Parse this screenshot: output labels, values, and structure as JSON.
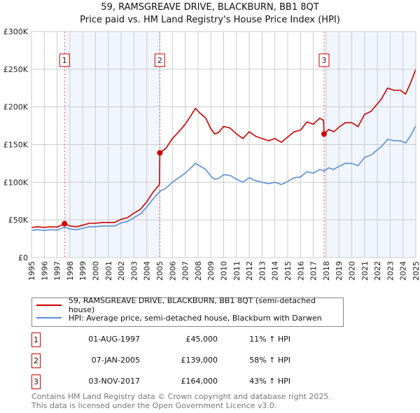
{
  "chart_data": {
    "type": "line",
    "title": "59, RAMSGREAVE DRIVE, BLACKBURN, BB1 8QT",
    "subtitle": "Price paid vs. HM Land Registry's House Price Index (HPI)",
    "xlim": [
      1995,
      2025
    ],
    "ylim": [
      0,
      300000
    ],
    "x_ticks": [
      "1995",
      "1996",
      "1997",
      "1998",
      "1999",
      "2000",
      "2001",
      "2002",
      "2003",
      "2004",
      "2005",
      "2006",
      "2007",
      "2008",
      "2009",
      "2010",
      "2011",
      "2012",
      "2013",
      "2014",
      "2015",
      "2016",
      "2017",
      "2018",
      "2019",
      "2020",
      "2021",
      "2022",
      "2023",
      "2024",
      "2025"
    ],
    "y_ticks": [
      {
        "v": 0,
        "label": "£0"
      },
      {
        "v": 50000,
        "label": "£50K"
      },
      {
        "v": 100000,
        "label": "£100K"
      },
      {
        "v": 150000,
        "label": "£150K"
      },
      {
        "v": 200000,
        "label": "£200K"
      },
      {
        "v": 250000,
        "label": "£250K"
      },
      {
        "v": 300000,
        "label": "£300K"
      }
    ],
    "grid": true,
    "legend_placement": "below",
    "series": [
      {
        "name": "59, RAMSGREAVE DRIVE, BLACKBURN, BB1 8QT (semi-detached house)",
        "color": "#cc0000",
        "x": [
          1995,
          1995.5,
          1996,
          1996.5,
          1997,
          1997.58,
          1998,
          1998.5,
          1999,
          1999.5,
          2000,
          2000.5,
          2001,
          2001.5,
          2002,
          2002.5,
          2003,
          2003.5,
          2004,
          2004.5,
          2004.99,
          2005.02,
          2005.5,
          2006,
          2006.5,
          2007,
          2007.5,
          2007.8,
          2008.2,
          2008.6,
          2009,
          2009.3,
          2009.6,
          2010,
          2010.5,
          2011,
          2011.5,
          2012,
          2012.5,
          2013,
          2013.5,
          2014,
          2014.5,
          2015,
          2015.5,
          2016,
          2016.5,
          2017,
          2017.5,
          2017.8,
          2017.84,
          2018.2,
          2018.6,
          2019,
          2019.5,
          2020,
          2020.5,
          2021,
          2021.5,
          2022,
          2022.3,
          2022.8,
          2023.3,
          2023.8,
          2024.2,
          2024.6,
          2025
        ],
        "y": [
          40000,
          41000,
          40000,
          41000,
          40500,
          45000,
          42000,
          41000,
          43000,
          45500,
          45500,
          46600,
          46600,
          46600,
          51000,
          53000,
          59000,
          64000,
          74000,
          87000,
          97000,
          139000,
          145000,
          158000,
          167000,
          177000,
          190000,
          198000,
          191000,
          185000,
          171000,
          164000,
          166000,
          174000,
          172000,
          164000,
          158000,
          167000,
          161000,
          158000,
          155000,
          158000,
          153000,
          160000,
          167000,
          169000,
          180000,
          177000,
          185000,
          182000,
          164000,
          170000,
          167000,
          173000,
          179000,
          179000,
          174000,
          190000,
          194000,
          204000,
          210000,
          225000,
          222000,
          222000,
          217000,
          232000,
          250000
        ]
      },
      {
        "name": "HPI: Average price, semi-detached house, Blackburn with Darwen",
        "color": "#5b8fd4",
        "x": [
          1995,
          1995.5,
          1996,
          1996.5,
          1997,
          1997.58,
          1998,
          1998.5,
          1999,
          1999.5,
          2000,
          2000.5,
          2001,
          2001.5,
          2002,
          2002.5,
          2003,
          2003.5,
          2004,
          2004.5,
          2005.02,
          2005.5,
          2006,
          2006.5,
          2007,
          2007.5,
          2007.8,
          2008.2,
          2008.6,
          2009,
          2009.3,
          2009.6,
          2010,
          2010.5,
          2011,
          2011.5,
          2012,
          2012.5,
          2013,
          2013.5,
          2014,
          2014.5,
          2015,
          2015.5,
          2016,
          2016.5,
          2017,
          2017.5,
          2017.84,
          2018.2,
          2018.6,
          2019,
          2019.5,
          2020,
          2020.5,
          2021,
          2021.5,
          2022,
          2022.3,
          2022.8,
          2023.3,
          2023.8,
          2024.2,
          2024.6,
          2025
        ],
        "y": [
          36000,
          37000,
          36000,
          37000,
          36500,
          40500,
          38000,
          37000,
          39000,
          41000,
          41000,
          42000,
          42000,
          42000,
          46000,
          48000,
          53000,
          58000,
          67000,
          78000,
          88000,
          92000,
          100000,
          106000,
          112000,
          120000,
          125000,
          121000,
          117000,
          108000,
          104000,
          105000,
          110000,
          109000,
          104000,
          100000,
          106000,
          102000,
          100000,
          98000,
          100000,
          97000,
          101000,
          106000,
          107000,
          114000,
          112000,
          117000,
          115000,
          119000,
          117000,
          121000,
          125000,
          125000,
          122000,
          133000,
          136000,
          143000,
          147000,
          157000,
          155000,
          155000,
          152000,
          162000,
          175000
        ]
      }
    ],
    "sales": [
      {
        "label": "1",
        "x": 1997.58,
        "y": 45000,
        "date": "01-AUG-1997",
        "price": "£45,000",
        "hpi": "11% ↑ HPI"
      },
      {
        "label": "2",
        "x": 2005.02,
        "y": 139000,
        "date": "07-JAN-2005",
        "price": "£139,000",
        "hpi": "58% ↑ HPI"
      },
      {
        "label": "3",
        "x": 2017.84,
        "y": 164000,
        "date": "03-NOV-2017",
        "price": "£164,000",
        "hpi": "43% ↑ HPI"
      }
    ]
  },
  "footer": {
    "line1": "Contains HM Land Registry data © Crown copyright and database right 2025.",
    "line2": "This data is licensed under the Open Government Licence v3.0."
  }
}
